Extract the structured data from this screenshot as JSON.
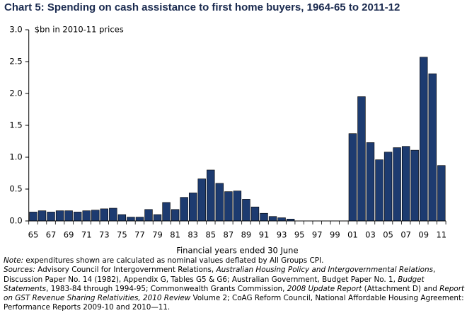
{
  "chart_data": {
    "type": "bar",
    "title": "Chart 5: Spending on cash assistance to first home buyers, 1964-65 to 2011-12",
    "y_unit_label": "$bn in 2010-11 prices",
    "x_label": "Financial years ended 30 June",
    "categories": [
      "65",
      null,
      "67",
      null,
      "69",
      null,
      "71",
      null,
      "73",
      null,
      "75",
      null,
      "77",
      null,
      "79",
      null,
      "81",
      null,
      "83",
      null,
      "85",
      null,
      "87",
      null,
      "89",
      null,
      "91",
      null,
      "93",
      null,
      "95",
      null,
      "97",
      null,
      "99",
      null,
      "01",
      null,
      "03",
      null,
      "05",
      null,
      "07",
      null,
      "09",
      null,
      "11"
    ],
    "values": [
      0.14,
      0.16,
      0.14,
      0.16,
      0.16,
      0.14,
      0.16,
      0.17,
      0.19,
      0.2,
      0.1,
      0.06,
      0.06,
      0.18,
      0.1,
      0.29,
      0.18,
      0.37,
      0.44,
      0.66,
      0.8,
      0.59,
      0.46,
      0.47,
      0.34,
      0.22,
      0.12,
      0.07,
      0.05,
      0.03,
      0,
      0,
      0,
      0,
      0,
      0,
      1.37,
      1.95,
      1.23,
      0.96,
      1.08,
      1.15,
      1.17,
      1.11,
      2.57,
      2.31,
      0.87
    ],
    "color": "#1d3b70",
    "ylim": [
      0,
      3
    ],
    "yticks": [
      {
        "value": 0,
        "label": "0.0"
      },
      {
        "value": 0.5,
        "label": "0.5"
      },
      {
        "value": 1,
        "label": "1.0"
      },
      {
        "value": 1.5,
        "label": "1.5"
      },
      {
        "value": 2,
        "label": "2.0"
      },
      {
        "value": 2.5,
        "label": "2.5"
      },
      {
        "value": 3,
        "label": "3.0"
      }
    ],
    "grid": false,
    "notes": {
      "note_label": "Note:",
      "note": " expenditures shown are calculated as nominal values deflated by All Groups CPI.",
      "sources_label": "Sources:",
      "sources": [
        {
          "text": " Advisory Council for Intergovernment Relations, ",
          "italic": false
        },
        {
          "text": "Australian Housing Policy and Intergovernmental Relations",
          "italic": true
        },
        {
          "text": ", Discussion Paper No. 14 (1982), Appendix G, Tables G5 & G6; Australian Government, Budget Paper No. 1, ",
          "italic": false
        },
        {
          "text": "Budget Statements",
          "italic": true
        },
        {
          "text": ", 1983-84 through 1994-95; Commonwealth Grants Commission, ",
          "italic": false
        },
        {
          "text": "2008 Update Report",
          "italic": true
        },
        {
          "text": " (Attachment D) and ",
          "italic": false
        },
        {
          "text": "Report on GST Revenue Sharing Relativities, 2010 Review",
          "italic": true
        },
        {
          "text": " Volume 2; CoAG Reform Council, National Affordable Housing Agreement: Performance Reports 2009-10 and 2010—11.",
          "italic": false
        }
      ]
    }
  }
}
